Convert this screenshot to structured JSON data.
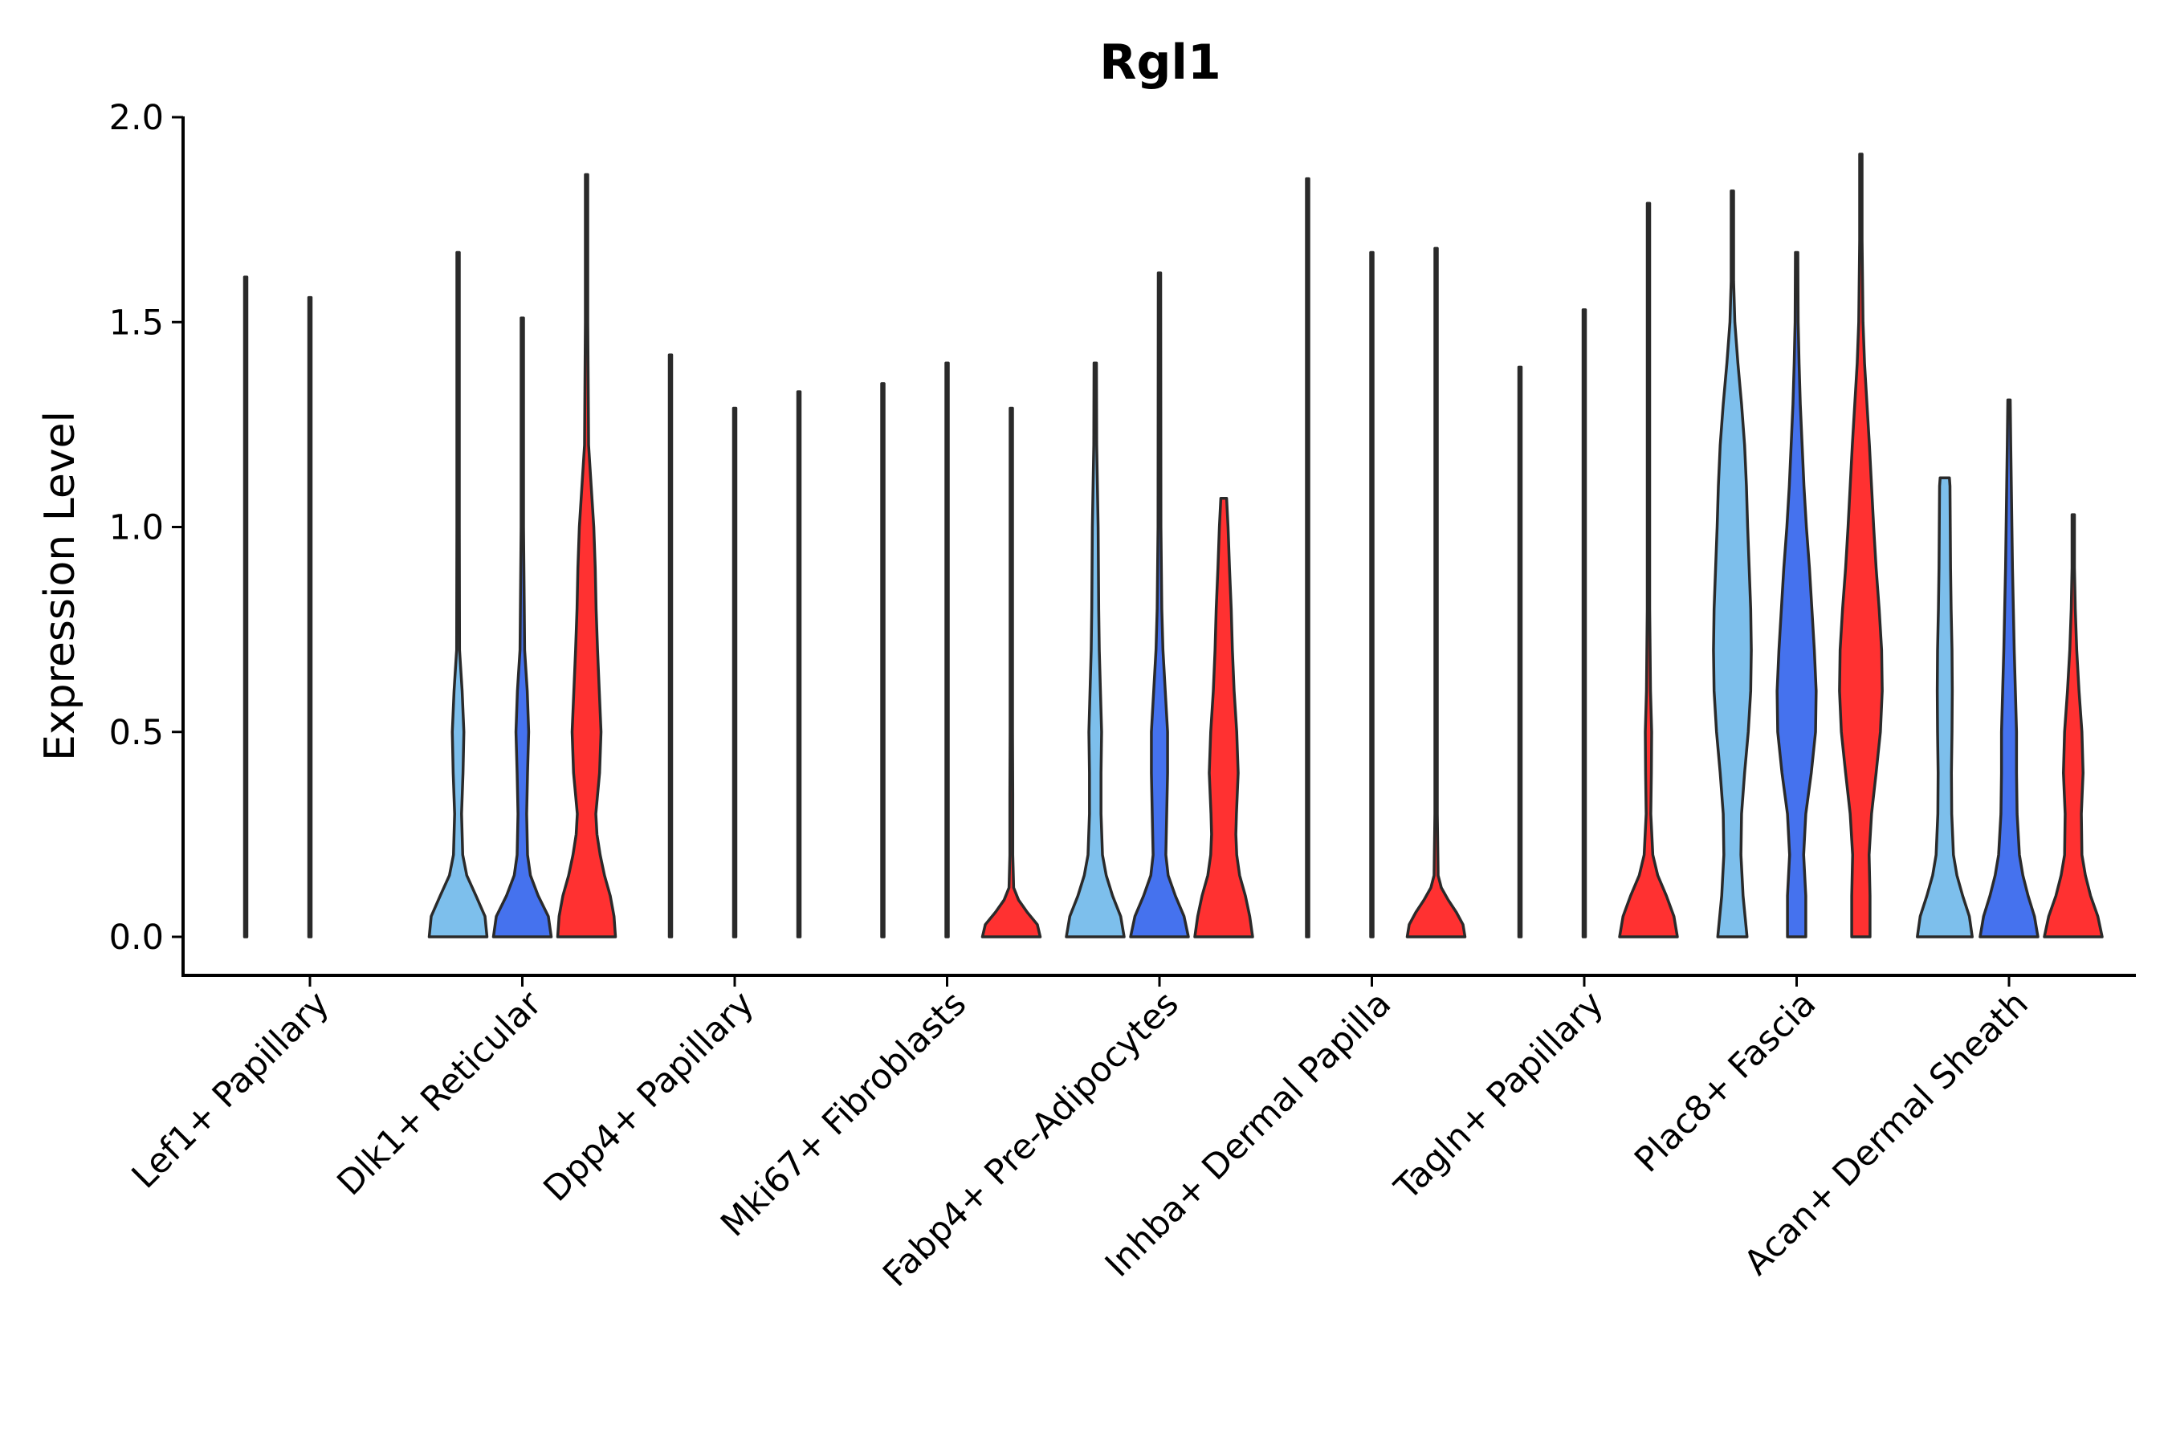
{
  "chart_data": {
    "type": "violin",
    "title": "Rgl1",
    "xlabel": "",
    "ylabel": "Expression Level",
    "ylim": [
      -0.1,
      2.0
    ],
    "yticks": [
      0.0,
      0.5,
      1.0,
      1.5,
      2.0
    ],
    "ytick_labels": [
      "0.0",
      "0.5",
      "1.0",
      "1.5",
      "2.0"
    ],
    "grid": false,
    "series_colors": [
      "#7dbfec",
      "#4572ee",
      "#ff3131"
    ],
    "categories": [
      "Lef1+ Papillary",
      "Dlk1+ Reticular",
      "Dpp4+ Papillary",
      "Mki67+ Fibroblasts",
      "Fabp4+ Pre-Adipocytes",
      "Inhba+ Dermal Papilla",
      "Tagln+ Papillary",
      "Plac8+ Fascia",
      "Acan+ Dermal Sheath"
    ],
    "violins": [
      {
        "cat": 0,
        "s": 0,
        "max": 1.61,
        "w": 0.02,
        "profile": [
          [
            0,
            0.3
          ],
          [
            0.01,
            1
          ],
          [
            0.03,
            0.05
          ],
          [
            1.61,
            0.02
          ]
        ]
      },
      {
        "cat": 0,
        "s": 1,
        "max": 1.56,
        "w": 0.02,
        "profile": [
          [
            0,
            0.3
          ],
          [
            0.01,
            1
          ],
          [
            0.03,
            0.05
          ],
          [
            1.56,
            0.02
          ]
        ]
      },
      {
        "cat": 0,
        "s": 2,
        "max": 0.0,
        "w": 0.0,
        "profile": []
      },
      {
        "cat": 1,
        "s": 0,
        "max": 1.67,
        "w": 0.9,
        "profile": [
          [
            0,
            1
          ],
          [
            0.05,
            0.93
          ],
          [
            0.1,
            0.62
          ],
          [
            0.15,
            0.3
          ],
          [
            0.2,
            0.16
          ],
          [
            0.3,
            0.12
          ],
          [
            0.4,
            0.17
          ],
          [
            0.5,
            0.2
          ],
          [
            0.6,
            0.14
          ],
          [
            0.7,
            0.05
          ],
          [
            1.0,
            0.03
          ],
          [
            1.4,
            0.02
          ],
          [
            1.67,
            0.02
          ]
        ]
      },
      {
        "cat": 1,
        "s": 1,
        "max": 1.51,
        "w": 0.9,
        "profile": [
          [
            0,
            1
          ],
          [
            0.05,
            0.9
          ],
          [
            0.1,
            0.55
          ],
          [
            0.15,
            0.28
          ],
          [
            0.2,
            0.18
          ],
          [
            0.3,
            0.15
          ],
          [
            0.4,
            0.18
          ],
          [
            0.5,
            0.22
          ],
          [
            0.6,
            0.17
          ],
          [
            0.7,
            0.08
          ],
          [
            1.0,
            0.04
          ],
          [
            1.3,
            0.03
          ],
          [
            1.51,
            0.02
          ]
        ]
      },
      {
        "cat": 1,
        "s": 2,
        "max": 1.86,
        "w": 0.9,
        "profile": [
          [
            0,
            1
          ],
          [
            0.05,
            0.95
          ],
          [
            0.1,
            0.82
          ],
          [
            0.15,
            0.62
          ],
          [
            0.2,
            0.47
          ],
          [
            0.25,
            0.36
          ],
          [
            0.3,
            0.32
          ],
          [
            0.4,
            0.45
          ],
          [
            0.5,
            0.5
          ],
          [
            0.6,
            0.44
          ],
          [
            0.7,
            0.38
          ],
          [
            0.8,
            0.33
          ],
          [
            0.9,
            0.3
          ],
          [
            1.0,
            0.25
          ],
          [
            1.1,
            0.16
          ],
          [
            1.2,
            0.07
          ],
          [
            1.5,
            0.03
          ],
          [
            1.86,
            0.02
          ]
        ]
      },
      {
        "cat": 2,
        "s": 0,
        "max": 1.42,
        "w": 0.9,
        "profile": [
          [
            0,
            0.02
          ],
          [
            1.42,
            0.02
          ]
        ]
      },
      {
        "cat": 2,
        "s": 1,
        "max": 1.29,
        "w": 0.9,
        "profile": [
          [
            0,
            0.02
          ],
          [
            1.29,
            0.02
          ]
        ]
      },
      {
        "cat": 2,
        "s": 2,
        "max": 1.33,
        "w": 0.9,
        "profile": [
          [
            0,
            0.02
          ],
          [
            1.33,
            0.02
          ]
        ]
      },
      {
        "cat": 3,
        "s": 0,
        "max": 1.35,
        "w": 0.9,
        "profile": [
          [
            0,
            0.02
          ],
          [
            1.35,
            0.02
          ]
        ]
      },
      {
        "cat": 3,
        "s": 1,
        "max": 1.4,
        "w": 0.9,
        "profile": [
          [
            0,
            0.02
          ],
          [
            1.4,
            0.02
          ]
        ]
      },
      {
        "cat": 3,
        "s": 2,
        "max": 1.29,
        "w": 0.9,
        "profile": [
          [
            0,
            1
          ],
          [
            0.03,
            0.9
          ],
          [
            0.06,
            0.55
          ],
          [
            0.09,
            0.25
          ],
          [
            0.12,
            0.08
          ],
          [
            0.2,
            0.05
          ],
          [
            0.35,
            0.05
          ],
          [
            0.5,
            0.03
          ],
          [
            1.29,
            0.02
          ]
        ]
      },
      {
        "cat": 4,
        "s": 0,
        "max": 1.4,
        "w": 0.9,
        "profile": [
          [
            0,
            1
          ],
          [
            0.05,
            0.88
          ],
          [
            0.1,
            0.6
          ],
          [
            0.15,
            0.38
          ],
          [
            0.2,
            0.25
          ],
          [
            0.3,
            0.2
          ],
          [
            0.4,
            0.2
          ],
          [
            0.5,
            0.22
          ],
          [
            0.6,
            0.18
          ],
          [
            0.7,
            0.14
          ],
          [
            0.8,
            0.12
          ],
          [
            1.0,
            0.1
          ],
          [
            1.2,
            0.05
          ],
          [
            1.4,
            0.02
          ]
        ]
      },
      {
        "cat": 4,
        "s": 1,
        "max": 1.62,
        "w": 0.9,
        "profile": [
          [
            0,
            1
          ],
          [
            0.05,
            0.85
          ],
          [
            0.1,
            0.55
          ],
          [
            0.15,
            0.3
          ],
          [
            0.2,
            0.22
          ],
          [
            0.3,
            0.25
          ],
          [
            0.4,
            0.28
          ],
          [
            0.5,
            0.28
          ],
          [
            0.6,
            0.2
          ],
          [
            0.7,
            0.12
          ],
          [
            0.8,
            0.08
          ],
          [
            1.0,
            0.05
          ],
          [
            1.62,
            0.02
          ]
        ]
      },
      {
        "cat": 4,
        "s": 2,
        "max": 1.07,
        "w": 0.9,
        "profile": [
          [
            0,
            1
          ],
          [
            0.05,
            0.9
          ],
          [
            0.1,
            0.75
          ],
          [
            0.15,
            0.55
          ],
          [
            0.2,
            0.45
          ],
          [
            0.25,
            0.42
          ],
          [
            0.3,
            0.44
          ],
          [
            0.4,
            0.5
          ],
          [
            0.5,
            0.45
          ],
          [
            0.6,
            0.36
          ],
          [
            0.7,
            0.3
          ],
          [
            0.8,
            0.26
          ],
          [
            0.9,
            0.2
          ],
          [
            1.0,
            0.15
          ],
          [
            1.07,
            0.1
          ]
        ]
      },
      {
        "cat": 5,
        "s": 0,
        "max": 1.85,
        "w": 0.02,
        "profile": [
          [
            0,
            0.3
          ],
          [
            0.01,
            1
          ],
          [
            0.03,
            0.05
          ],
          [
            1.85,
            0.02
          ]
        ]
      },
      {
        "cat": 5,
        "s": 1,
        "max": 1.67,
        "w": 0.02,
        "profile": [
          [
            0,
            0.3
          ],
          [
            0.01,
            1
          ],
          [
            0.03,
            0.05
          ],
          [
            1.67,
            0.02
          ]
        ]
      },
      {
        "cat": 5,
        "s": 2,
        "max": 1.68,
        "w": 0.9,
        "profile": [
          [
            0,
            1
          ],
          [
            0.03,
            0.93
          ],
          [
            0.06,
            0.7
          ],
          [
            0.09,
            0.42
          ],
          [
            0.12,
            0.18
          ],
          [
            0.15,
            0.07
          ],
          [
            0.3,
            0.04
          ],
          [
            0.6,
            0.04
          ],
          [
            1.0,
            0.03
          ],
          [
            1.68,
            0.02
          ]
        ]
      },
      {
        "cat": 6,
        "s": 0,
        "max": 1.39,
        "w": 0.02,
        "profile": [
          [
            0,
            0.3
          ],
          [
            0.01,
            1
          ],
          [
            0.03,
            0.05
          ],
          [
            1.39,
            0.02
          ]
        ]
      },
      {
        "cat": 6,
        "s": 1,
        "max": 1.53,
        "w": 0.02,
        "profile": [
          [
            0,
            0.3
          ],
          [
            0.01,
            1
          ],
          [
            0.03,
            0.05
          ],
          [
            1.53,
            0.02
          ]
        ]
      },
      {
        "cat": 6,
        "s": 2,
        "max": 1.79,
        "w": 0.9,
        "profile": [
          [
            0,
            1
          ],
          [
            0.05,
            0.88
          ],
          [
            0.1,
            0.62
          ],
          [
            0.15,
            0.32
          ],
          [
            0.2,
            0.15
          ],
          [
            0.3,
            0.08
          ],
          [
            0.4,
            0.1
          ],
          [
            0.5,
            0.11
          ],
          [
            0.6,
            0.07
          ],
          [
            0.8,
            0.04
          ],
          [
            1.2,
            0.03
          ],
          [
            1.79,
            0.02
          ]
        ]
      },
      {
        "cat": 7,
        "s": 0,
        "max": 1.82,
        "w": 0.95,
        "profile": [
          [
            0,
            0.48
          ],
          [
            0.1,
            0.35
          ],
          [
            0.2,
            0.28
          ],
          [
            0.3,
            0.3
          ],
          [
            0.4,
            0.4
          ],
          [
            0.5,
            0.52
          ],
          [
            0.6,
            0.6
          ],
          [
            0.7,
            0.62
          ],
          [
            0.8,
            0.6
          ],
          [
            0.9,
            0.55
          ],
          [
            1.0,
            0.5
          ],
          [
            1.1,
            0.46
          ],
          [
            1.2,
            0.4
          ],
          [
            1.3,
            0.3
          ],
          [
            1.4,
            0.18
          ],
          [
            1.5,
            0.08
          ],
          [
            1.6,
            0.04
          ],
          [
            1.82,
            0.02
          ]
        ]
      },
      {
        "cat": 7,
        "s": 1,
        "max": 1.67,
        "w": 0.95,
        "profile": [
          [
            0,
            0.3
          ],
          [
            0.1,
            0.3
          ],
          [
            0.2,
            0.23
          ],
          [
            0.3,
            0.3
          ],
          [
            0.4,
            0.48
          ],
          [
            0.5,
            0.62
          ],
          [
            0.6,
            0.64
          ],
          [
            0.7,
            0.58
          ],
          [
            0.8,
            0.5
          ],
          [
            0.9,
            0.42
          ],
          [
            1.0,
            0.32
          ],
          [
            1.1,
            0.24
          ],
          [
            1.2,
            0.18
          ],
          [
            1.3,
            0.12
          ],
          [
            1.4,
            0.08
          ],
          [
            1.5,
            0.05
          ],
          [
            1.67,
            0.03
          ]
        ]
      },
      {
        "cat": 7,
        "s": 2,
        "max": 1.91,
        "w": 0.95,
        "profile": [
          [
            0,
            0.3
          ],
          [
            0.1,
            0.3
          ],
          [
            0.2,
            0.27
          ],
          [
            0.3,
            0.35
          ],
          [
            0.4,
            0.5
          ],
          [
            0.5,
            0.64
          ],
          [
            0.6,
            0.7
          ],
          [
            0.7,
            0.68
          ],
          [
            0.8,
            0.6
          ],
          [
            0.9,
            0.5
          ],
          [
            1.0,
            0.42
          ],
          [
            1.1,
            0.35
          ],
          [
            1.2,
            0.28
          ],
          [
            1.3,
            0.2
          ],
          [
            1.4,
            0.12
          ],
          [
            1.5,
            0.07
          ],
          [
            1.7,
            0.03
          ],
          [
            1.91,
            0.02
          ]
        ]
      },
      {
        "cat": 8,
        "s": 0,
        "max": 1.12,
        "w": 0.9,
        "profile": [
          [
            0,
            0.95
          ],
          [
            0.05,
            0.85
          ],
          [
            0.1,
            0.62
          ],
          [
            0.15,
            0.42
          ],
          [
            0.2,
            0.3
          ],
          [
            0.3,
            0.24
          ],
          [
            0.4,
            0.23
          ],
          [
            0.5,
            0.25
          ],
          [
            0.6,
            0.26
          ],
          [
            0.7,
            0.25
          ],
          [
            0.8,
            0.22
          ],
          [
            0.9,
            0.2
          ],
          [
            1.0,
            0.19
          ],
          [
            1.1,
            0.18
          ],
          [
            1.12,
            0.16
          ]
        ]
      },
      {
        "cat": 8,
        "s": 1,
        "max": 1.31,
        "w": 0.9,
        "profile": [
          [
            0,
            1
          ],
          [
            0.05,
            0.88
          ],
          [
            0.1,
            0.66
          ],
          [
            0.15,
            0.48
          ],
          [
            0.2,
            0.36
          ],
          [
            0.3,
            0.28
          ],
          [
            0.4,
            0.26
          ],
          [
            0.5,
            0.26
          ],
          [
            0.6,
            0.22
          ],
          [
            0.7,
            0.18
          ],
          [
            0.8,
            0.15
          ],
          [
            0.9,
            0.12
          ],
          [
            1.0,
            0.1
          ],
          [
            1.1,
            0.08
          ],
          [
            1.2,
            0.06
          ],
          [
            1.31,
            0.04
          ]
        ]
      },
      {
        "cat": 8,
        "s": 2,
        "max": 1.03,
        "w": 0.9,
        "profile": [
          [
            0,
            1
          ],
          [
            0.05,
            0.85
          ],
          [
            0.1,
            0.6
          ],
          [
            0.15,
            0.42
          ],
          [
            0.2,
            0.3
          ],
          [
            0.3,
            0.28
          ],
          [
            0.4,
            0.34
          ],
          [
            0.5,
            0.3
          ],
          [
            0.6,
            0.2
          ],
          [
            0.7,
            0.12
          ],
          [
            0.8,
            0.07
          ],
          [
            0.9,
            0.04
          ],
          [
            1.03,
            0.02
          ]
        ]
      }
    ]
  }
}
